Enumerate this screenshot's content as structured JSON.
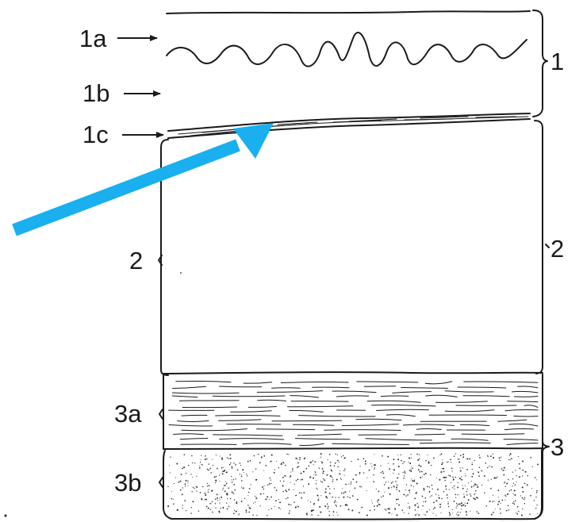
{
  "labels": {
    "left": {
      "l1a": "1a",
      "l1b": "1b",
      "l1c": "1c",
      "l2": "2",
      "l3a": "3a",
      "l3b": "3b"
    },
    "right": {
      "r1": "1",
      "r2": "2",
      "r3": "3"
    }
  },
  "colors": {
    "ink": "#1a1a1a",
    "highlight_arrow": "#1AAFEF"
  }
}
